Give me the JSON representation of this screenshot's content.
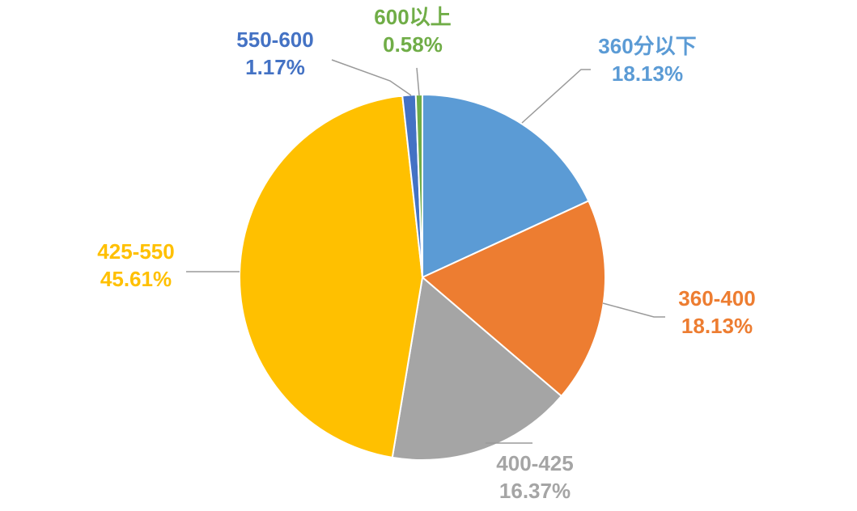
{
  "chart_data": {
    "type": "pie",
    "title": "",
    "start": "top, clockwise",
    "slices": [
      {
        "name": "360分以下",
        "value": 18.13,
        "pct_label": "18.13%",
        "color": "#5B9BD5"
      },
      {
        "name": "360-400",
        "value": 18.13,
        "pct_label": "18.13%",
        "color": "#ED7D31"
      },
      {
        "name": "400-425",
        "value": 16.37,
        "pct_label": "16.37%",
        "color": "#A5A5A5"
      },
      {
        "name": "425-550",
        "value": 45.61,
        "pct_label": "45.61%",
        "color": "#FFC000"
      },
      {
        "name": "550-600",
        "value": 1.17,
        "pct_label": "1.17%",
        "color": "#4472C4"
      },
      {
        "name": "600以上",
        "value": 0.58,
        "pct_label": "0.58%",
        "color": "#70AD47"
      }
    ]
  }
}
